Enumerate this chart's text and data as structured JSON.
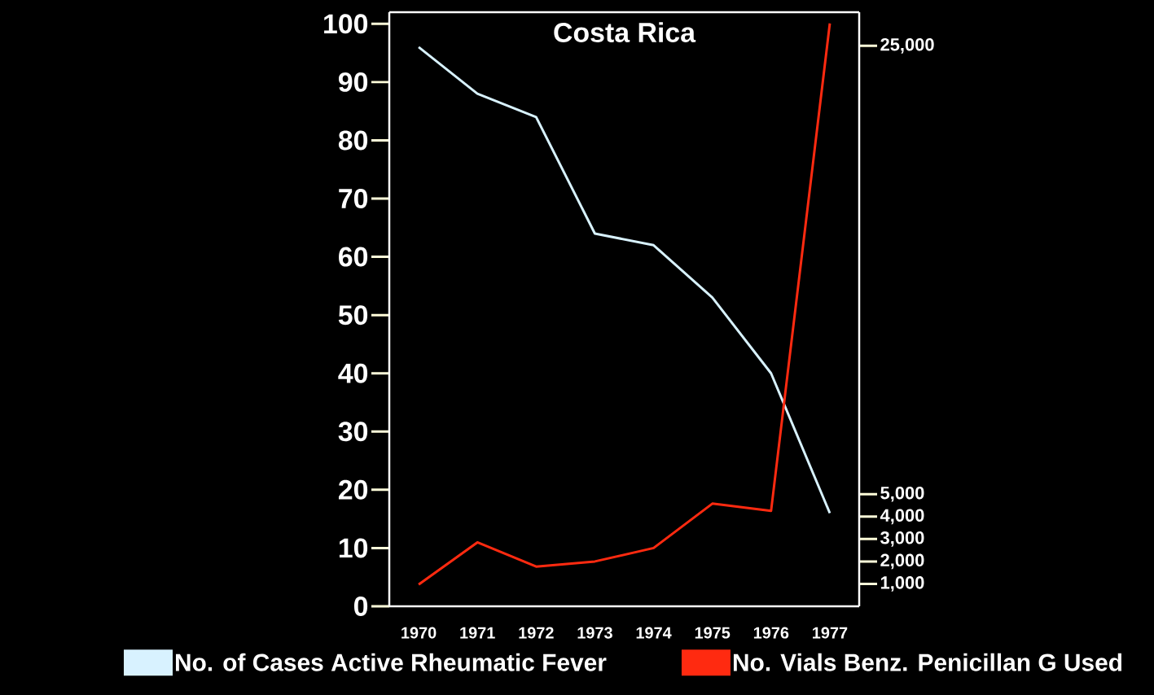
{
  "chart_data": {
    "type": "line",
    "title": "Costa Rica",
    "categories": [
      "1970",
      "1971",
      "1972",
      "1973",
      "1974",
      "1975",
      "1976",
      "1977"
    ],
    "series": [
      {
        "name": "No. of Cases Active Rheumatic Fever",
        "color": "#d8f2ff",
        "values": [
          96,
          88,
          84,
          64,
          62,
          53,
          40,
          16
        ]
      },
      {
        "name": "No. Vials Benz. Penicillan G Used",
        "color": "#ff2a10",
        "axis": "y2",
        "values": [
          970,
          2850,
          1770,
          2000,
          2600,
          4580,
          4260,
          26000
        ]
      }
    ],
    "ylim": [
      0,
      102
    ],
    "yticks": [
      0,
      10,
      20,
      30,
      40,
      50,
      60,
      70,
      80,
      90,
      100
    ],
    "y2lim": [
      0,
      26500
    ],
    "y2ticks": [
      {
        "value": 1000,
        "label": "1,000"
      },
      {
        "value": 2000,
        "label": "2,000"
      },
      {
        "value": 3000,
        "label": "3,000"
      },
      {
        "value": 4000,
        "label": "4,000"
      },
      {
        "value": 5000,
        "label": "5,000"
      },
      {
        "value": 25000,
        "label": "25,000"
      }
    ],
    "grid": false,
    "legend": "bottom",
    "marker": "none",
    "line_style": "solid"
  }
}
